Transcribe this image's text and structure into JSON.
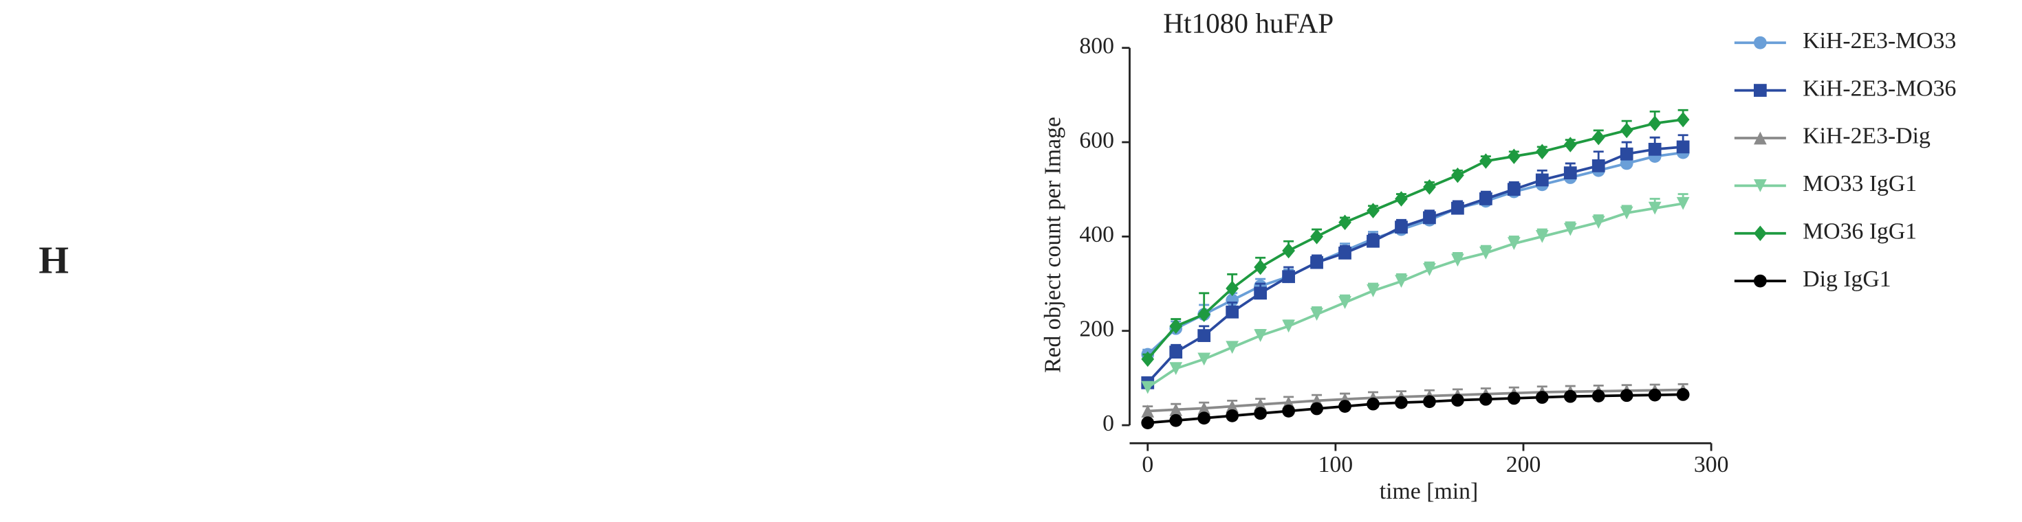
{
  "panel_label": "H",
  "chart_data": {
    "type": "line",
    "title": "Ht1080 huFAP",
    "x_label": "time [min]",
    "y_label": "Red object count per Image",
    "x": [
      0,
      15,
      30,
      45,
      60,
      75,
      90,
      105,
      120,
      135,
      150,
      165,
      180,
      195,
      210,
      225,
      240,
      255,
      270,
      285
    ],
    "xlim": [
      0,
      300
    ],
    "xticks": [
      0,
      100,
      200,
      300
    ],
    "ylim": [
      0,
      800
    ],
    "yticks": [
      0,
      200,
      400,
      600,
      800
    ],
    "legend": "right",
    "series": [
      {
        "name": "KiH-2E3-MO33",
        "color": "#6a9fd8",
        "marker": "circle",
        "values": [
          150,
          205,
          235,
          265,
          295,
          315,
          345,
          370,
          395,
          415,
          435,
          460,
          475,
          495,
          510,
          525,
          540,
          555,
          570,
          578
        ],
        "errors": [
          10,
          15,
          20,
          15,
          15,
          15,
          15,
          15,
          15,
          15,
          15,
          15,
          15,
          15,
          15,
          15,
          15,
          15,
          15,
          20
        ]
      },
      {
        "name": "KiH-2E3-MO36",
        "color": "#2a4aa0",
        "marker": "square",
        "values": [
          90,
          155,
          190,
          240,
          280,
          315,
          345,
          365,
          390,
          420,
          440,
          460,
          480,
          500,
          520,
          535,
          550,
          575,
          585,
          590
        ],
        "errors": [
          10,
          15,
          20,
          20,
          20,
          20,
          15,
          15,
          15,
          15,
          15,
          15,
          15,
          15,
          20,
          20,
          30,
          25,
          25,
          25
        ]
      },
      {
        "name": "KiH-2E3-Dig",
        "color": "#8a8a8a",
        "marker": "triangle",
        "values": [
          30,
          33,
          36,
          40,
          44,
          48,
          52,
          55,
          58,
          60,
          62,
          64,
          66,
          68,
          70,
          71,
          72,
          73,
          74,
          75
        ],
        "errors": [
          10,
          12,
          12,
          12,
          12,
          12,
          12,
          12,
          12,
          12,
          12,
          12,
          12,
          12,
          12,
          12,
          12,
          12,
          12,
          12
        ]
      },
      {
        "name": "MO33 IgG1",
        "color": "#7fcfa0",
        "marker": "down-triangle",
        "values": [
          80,
          120,
          140,
          165,
          190,
          210,
          235,
          260,
          285,
          305,
          330,
          350,
          365,
          385,
          400,
          415,
          430,
          450,
          460,
          470
        ],
        "errors": [
          10,
          10,
          10,
          10,
          12,
          12,
          15,
          15,
          15,
          15,
          15,
          15,
          15,
          15,
          15,
          15,
          15,
          15,
          20,
          20
        ]
      },
      {
        "name": "MO36 IgG1",
        "color": "#1e9a40",
        "marker": "diamond",
        "values": [
          140,
          210,
          235,
          290,
          335,
          370,
          400,
          430,
          455,
          480,
          505,
          530,
          560,
          570,
          580,
          595,
          610,
          625,
          640,
          648
        ],
        "errors": [
          10,
          15,
          45,
          30,
          20,
          20,
          15,
          10,
          10,
          10,
          10,
          10,
          10,
          10,
          10,
          10,
          15,
          20,
          25,
          20
        ]
      },
      {
        "name": "Dig IgG1",
        "color": "#000000",
        "marker": "circle",
        "values": [
          5,
          10,
          15,
          20,
          25,
          30,
          35,
          40,
          45,
          48,
          50,
          53,
          55,
          57,
          59,
          61,
          62,
          63,
          64,
          65
        ],
        "errors": [
          3,
          4,
          4,
          5,
          5,
          5,
          5,
          5,
          5,
          5,
          5,
          5,
          5,
          5,
          5,
          5,
          5,
          5,
          5,
          5
        ]
      }
    ]
  }
}
